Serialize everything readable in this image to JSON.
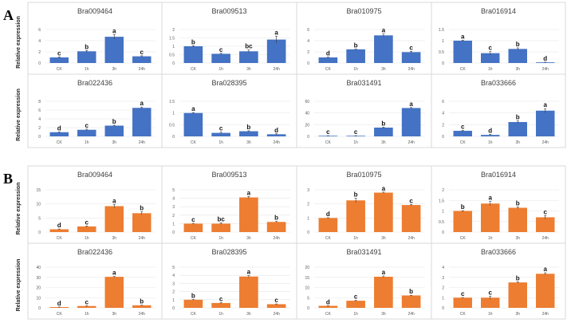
{
  "chart_data": [
    {
      "panel": "A",
      "color": "#4472C4",
      "ylabel": "Relative expression",
      "categories": [
        "CK",
        "1h",
        "3h",
        "24h"
      ],
      "type": "bar",
      "charts": [
        {
          "title": "Bra009464",
          "ylim": [
            0,
            6
          ],
          "step": 2,
          "values": [
            1,
            2.1,
            4.7,
            1.2
          ],
          "errors": [
            0.1,
            0.15,
            0.4,
            0.1
          ],
          "letters": [
            "c",
            "b",
            "a",
            "c"
          ]
        },
        {
          "title": "Bra009513",
          "ylim": [
            0,
            2
          ],
          "step": 0.5,
          "values": [
            1,
            0.55,
            0.7,
            1.4
          ],
          "errors": [
            0.03,
            0.03,
            0.08,
            0.2
          ],
          "letters": [
            "b",
            "c",
            "bc",
            "a"
          ]
        },
        {
          "title": "Bra010975",
          "ylim": [
            0,
            6
          ],
          "step": 2,
          "values": [
            1,
            2.45,
            4.95,
            1.95
          ],
          "errors": [
            0.05,
            0.05,
            0.25,
            0.15
          ],
          "letters": [
            "d",
            "b",
            "a",
            "c"
          ]
        },
        {
          "title": "Bra016914",
          "ylim": [
            0,
            1.5
          ],
          "step": 0.5,
          "values": [
            1,
            0.44,
            0.63,
            0.03
          ],
          "errors": [
            0.02,
            0.07,
            0.05,
            0.01
          ],
          "letters": [
            "a",
            "c",
            "b",
            "d"
          ]
        },
        {
          "title": "Bra022436",
          "ylim": [
            0,
            8
          ],
          "step": 2,
          "values": [
            0.95,
            1.5,
            2.45,
            6.5
          ],
          "errors": [
            0.05,
            0.15,
            0.1,
            0.2
          ],
          "letters": [
            "d",
            "c",
            "b",
            "a"
          ]
        },
        {
          "title": "Bra028395",
          "ylim": [
            0,
            1.5
          ],
          "step": 0.5,
          "values": [
            1,
            0.15,
            0.22,
            0.09
          ],
          "errors": [
            0.02,
            0.03,
            0.02,
            0.02
          ],
          "letters": [
            "a",
            "c",
            "b",
            "d"
          ]
        },
        {
          "title": "Bra031491",
          "ylim": [
            0,
            60
          ],
          "step": 20,
          "values": [
            1,
            1,
            15,
            48.5
          ],
          "errors": [
            0.2,
            0.2,
            0.8,
            0.8
          ],
          "letters": [
            "c",
            "c",
            "b",
            "a"
          ]
        },
        {
          "title": "Bra033666",
          "ylim": [
            0,
            6
          ],
          "step": 2,
          "values": [
            0.95,
            0.25,
            2.45,
            4.4
          ],
          "errors": [
            0.08,
            0.1,
            0.2,
            0.35
          ],
          "letters": [
            "c",
            "d",
            "b",
            "a"
          ]
        }
      ]
    },
    {
      "panel": "B",
      "color": "#ED7D31",
      "ylabel": "Relative expression",
      "categories": [
        "CK",
        "1h",
        "3h",
        "24h"
      ],
      "type": "bar",
      "charts": [
        {
          "title": "Bra009464",
          "ylim": [
            0,
            15
          ],
          "step": 5,
          "values": [
            1,
            2,
            9.2,
            6.7
          ],
          "errors": [
            0.1,
            0.15,
            0.6,
            0.5
          ],
          "letters": [
            "d",
            "c",
            "a",
            "b"
          ]
        },
        {
          "title": "Bra009513",
          "ylim": [
            0,
            5
          ],
          "step": 1,
          "values": [
            1,
            1,
            4.1,
            1.2
          ],
          "errors": [
            0.03,
            0.1,
            0.12,
            0.06
          ],
          "letters": [
            "c",
            "bc",
            "a",
            "b"
          ]
        },
        {
          "title": "Bra010975",
          "ylim": [
            0,
            3
          ],
          "step": 1,
          "values": [
            1,
            2.25,
            2.8,
            1.92
          ],
          "errors": [
            0.02,
            0.15,
            0.04,
            0.04
          ],
          "letters": [
            "d",
            "b",
            "a",
            "c"
          ]
        },
        {
          "title": "Bra016914",
          "ylim": [
            0,
            2
          ],
          "step": 0.5,
          "values": [
            1,
            1.35,
            1.15,
            0.7
          ],
          "errors": [
            0.01,
            0.1,
            0.04,
            0.08
          ],
          "letters": [
            "b",
            "a",
            "b",
            "c"
          ]
        },
        {
          "title": "Bra022436",
          "ylim": [
            0,
            40
          ],
          "step": 10,
          "values": [
            0.8,
            1.8,
            30.5,
            2.5
          ],
          "errors": [
            0.1,
            0.2,
            0.4,
            0.2
          ],
          "letters": [
            "d",
            "c",
            "a",
            "b"
          ]
        },
        {
          "title": "Bra028395",
          "ylim": [
            0,
            5
          ],
          "step": 1,
          "values": [
            1,
            0.6,
            3.85,
            0.45
          ],
          "errors": [
            0.03,
            0.04,
            0.1,
            0.03
          ],
          "letters": [
            "b",
            "c",
            "a",
            "c"
          ]
        },
        {
          "title": "Bra031491",
          "ylim": [
            0,
            20
          ],
          "step": 5,
          "values": [
            1,
            3.5,
            15.3,
            6.1
          ],
          "errors": [
            0.05,
            0.2,
            0.4,
            0.1
          ],
          "letters": [
            "d",
            "c",
            "a",
            "b"
          ]
        },
        {
          "title": "Bra033666",
          "ylim": [
            0,
            4
          ],
          "step": 1,
          "values": [
            1,
            1,
            2.5,
            3.35
          ],
          "errors": [
            0.02,
            0.15,
            0.05,
            0.1
          ],
          "letters": [
            "c",
            "c",
            "b",
            "a"
          ]
        }
      ]
    }
  ]
}
